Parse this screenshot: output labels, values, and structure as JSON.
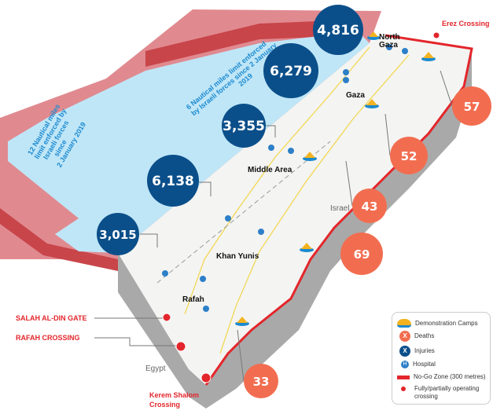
{
  "sea_labels": {
    "twelve_nm": [
      "12 Nautical miles",
      "limit enforced by",
      "Israeli forces",
      "since",
      "2 January 2019"
    ],
    "six_nm": [
      "6 Nautical miles limit enforced",
      "by Israeli forces since 2 January",
      "2019"
    ]
  },
  "injuries": [
    {
      "governorate": "North Gaza",
      "value": "4,816"
    },
    {
      "governorate": "Gaza",
      "value": "6,279"
    },
    {
      "governorate": "Middle Area",
      "value": "3,355"
    },
    {
      "governorate": "Khan Yunis",
      "value": "6,138"
    },
    {
      "governorate": "Rafah",
      "value": "3,015"
    }
  ],
  "deaths": [
    {
      "governorate": "North Gaza",
      "value": "57"
    },
    {
      "governorate": "Gaza",
      "value": "52"
    },
    {
      "governorate": "Middle Area",
      "value": "43"
    },
    {
      "governorate": "Khan Yunis",
      "value": "69"
    },
    {
      "governorate": "Rafah",
      "value": "33"
    }
  ],
  "places": {
    "north_gaza": [
      "North",
      "Gaza"
    ],
    "gaza": "Gaza",
    "middle_area": "Middle Area",
    "khan_yunis": "Khan Yunis",
    "rafah": "Rafah",
    "israel": "Israel",
    "egypt": "Egypt"
  },
  "crossings": {
    "erez": "Erez Crossing",
    "salah": "SALAH AL-DIN GATE",
    "rafah": "RAFAH CROSSING",
    "kerem": [
      "Kerem Shalom",
      "Crossing"
    ]
  },
  "legend": {
    "camps": "Demonstration Camps",
    "deaths": "Deaths",
    "injuries": "Injuries",
    "hospital": "Hospital",
    "nogo": "No-Go Zone (300 metres)",
    "crossing": [
      "Fully/partially operating",
      "crossing"
    ],
    "symbol_x": "X",
    "symbol_h": "H"
  },
  "colors": {
    "injuries": "#0b4f8a",
    "deaths": "#f26d50",
    "nogo": "#e3262b",
    "sea": "#bfe6f7",
    "outer_zone": "#e08a90",
    "crossing_label": "#e3262b"
  },
  "icons": [
    "tent-camp-icon",
    "hospital-icon",
    "crossing-icon"
  ]
}
